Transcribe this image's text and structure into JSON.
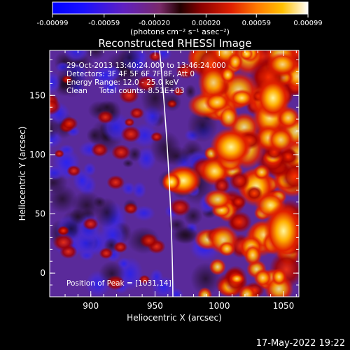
{
  "colorbar": {
    "tick_labels": [
      "-0.00099",
      "-0.00059",
      "-0.00020",
      "0.00020",
      "0.00059",
      "0.00099"
    ],
    "units_label": "(photons cm⁻² s⁻¹ asec⁻²)",
    "range": [
      -0.00099,
      0.00099
    ],
    "colormap": [
      "#0000ff",
      "#3a2fd0",
      "#7a3a8e",
      "#2a1a2a",
      "#8a0000",
      "#d61800",
      "#ff6a00",
      "#ffb000",
      "#ffff80",
      "#ffffff"
    ]
  },
  "image": {
    "title": "Reconstructed RHESSI Image",
    "info_lines": [
      "29-Oct-2013 13:40:24.000 to 13:46:24.000",
      "Detectors: 3F 4F 5F 6F 7F 8F, Att 0",
      "Energy Range: 12.0 - 25.0 keV",
      "Clean     Total counts: 8.51E+03"
    ],
    "peak_label": "Position of Peak = [1031,14]",
    "peak_position": [
      1031,
      14
    ],
    "limb_color": "#ffffff"
  },
  "axes": {
    "xlabel": "Heliocentric X (arcsec)",
    "ylabel": "Heliocentric Y (arcsec)",
    "xlim": [
      868,
      1062
    ],
    "ylim": [
      -20,
      188
    ],
    "xticks": [
      "900",
      "950",
      "1000",
      "1050"
    ],
    "yticks": [
      "0",
      "50",
      "100",
      "150"
    ]
  },
  "footer": {
    "date": "17-May-2022 19:22"
  }
}
